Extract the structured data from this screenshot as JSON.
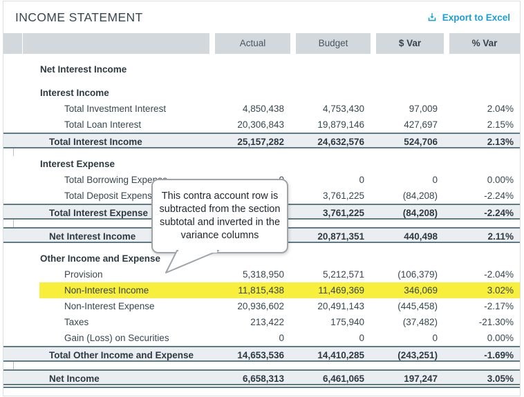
{
  "widget": {
    "title": "INCOME STATEMENT",
    "export_label": "Export to Excel"
  },
  "columns": {
    "actual": "Actual",
    "budget": "Budget",
    "dollar_var": "$ Var",
    "percent_var": "% Var"
  },
  "callout": {
    "text": "This contra account row is subtracted from the section subtotal and inverted in the variance columns"
  },
  "colors": {
    "accent_blue": "#1a9fd4",
    "highlight_yellow": "#f8ee3c",
    "header_gray": "#d2d8dc",
    "subtotal_bg": "#eaeef0",
    "rule_slate": "#5f7a87"
  },
  "rows": [
    {
      "type": "spacer"
    },
    {
      "type": "section",
      "label": "Net Interest Income",
      "actual": "",
      "budget": "",
      "dvar": "",
      "pvar": ""
    },
    {
      "type": "spacer"
    },
    {
      "type": "section",
      "label": "Interest Income",
      "actual": "",
      "budget": "",
      "dvar": "",
      "pvar": ""
    },
    {
      "type": "detail",
      "label": "Total Investment Interest",
      "actual": "4,850,438",
      "budget": "4,753,430",
      "dvar": "97,009",
      "pvar": "2.04%"
    },
    {
      "type": "detail",
      "label": "Total Loan Interest",
      "actual": "20,306,843",
      "budget": "19,879,146",
      "dvar": "427,697",
      "pvar": "2.15%"
    },
    {
      "type": "subtotal",
      "label": "Total Interest Income",
      "actual": "25,157,282",
      "budget": "24,632,576",
      "dvar": "524,706",
      "pvar": "2.13%"
    },
    {
      "type": "spacer",
      "tick": true
    },
    {
      "type": "section",
      "label": "Interest Expense",
      "actual": "",
      "budget": "",
      "dvar": "",
      "pvar": ""
    },
    {
      "type": "detail",
      "label": "Total Borrowing Expense",
      "actual": "0",
      "budget": "0",
      "dvar": "0",
      "pvar": "0.00%"
    },
    {
      "type": "detail",
      "label": "Total Deposit Expense",
      "actual": "",
      "budget": "3,761,225",
      "dvar": "(84,208)",
      "pvar": "-2.24%"
    },
    {
      "type": "subtotal",
      "label": "Total Interest Expense",
      "actual": "",
      "budget": "3,761,225",
      "dvar": "(84,208)",
      "pvar": "-2.24%"
    },
    {
      "type": "spacer",
      "tick": true
    },
    {
      "type": "total",
      "label": "Net Interest Income",
      "actual": "",
      "budget": "20,871,351",
      "dvar": "440,498",
      "pvar": "2.11%"
    },
    {
      "type": "spacer"
    },
    {
      "type": "section",
      "label": "Other Income and Expense",
      "actual": "",
      "budget": "",
      "dvar": "",
      "pvar": ""
    },
    {
      "type": "detail",
      "label": "Provision",
      "actual": "5,318,950",
      "budget": "5,212,571",
      "dvar": "(106,379)",
      "pvar": "-2.04%"
    },
    {
      "type": "detail",
      "label": "Non-Interest Income",
      "actual": "11,815,438",
      "budget": "11,469,369",
      "dvar": "346,069",
      "pvar": "3.02%",
      "highlight": true
    },
    {
      "type": "detail",
      "label": "Non-Interest Expense",
      "actual": "20,936,602",
      "budget": "20,491,143",
      "dvar": "(445,458)",
      "pvar": "-2.17%"
    },
    {
      "type": "detail",
      "label": "Taxes",
      "actual": "213,422",
      "budget": "175,940",
      "dvar": "(37,482)",
      "pvar": "-21.30%"
    },
    {
      "type": "detail",
      "label": "Gain (Loss) on Securities",
      "actual": "0",
      "budget": "0",
      "dvar": "0",
      "pvar": "0.00%"
    },
    {
      "type": "subtotal",
      "label": "Total Other Income and Expense",
      "actual": "14,653,536",
      "budget": "14,410,285",
      "dvar": "(243,251)",
      "pvar": "-1.69%"
    },
    {
      "type": "spacer",
      "tick": true
    },
    {
      "type": "total",
      "label": "Net Income",
      "actual": "6,658,313",
      "budget": "6,461,065",
      "dvar": "197,247",
      "pvar": "3.05%",
      "final": true
    }
  ]
}
